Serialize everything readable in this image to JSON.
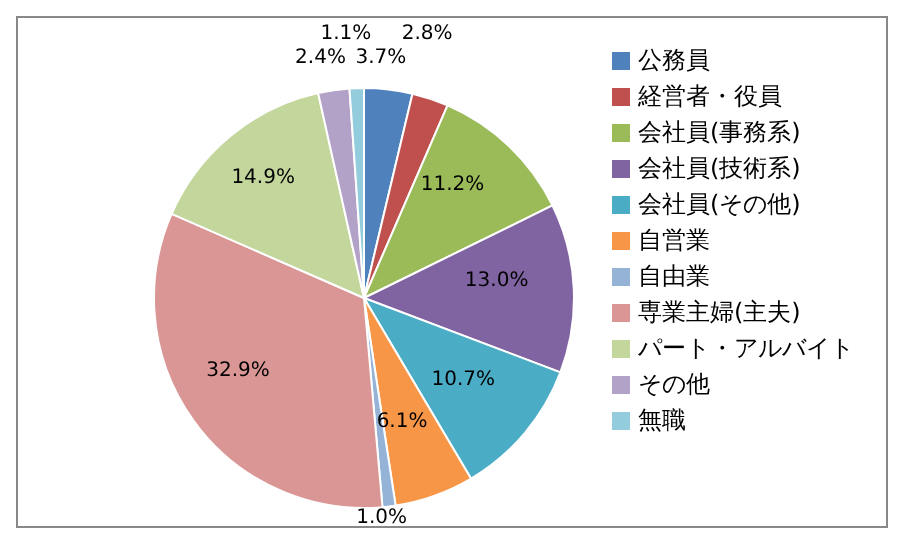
{
  "chart_data": {
    "type": "pie",
    "categories": [
      "公務員",
      "経営者・役員",
      "会社員(事務系)",
      "会社員(技術系)",
      "会社員(その他)",
      "自営業",
      "自由業",
      "専業主婦(主夫)",
      "パート・アルバイト",
      "その他",
      "無職"
    ],
    "values": [
      3.7,
      2.8,
      11.2,
      13.0,
      10.7,
      6.1,
      1.0,
      32.9,
      14.9,
      2.4,
      1.1
    ],
    "value_labels": [
      "3.7%",
      "2.8%",
      "11.2%",
      "13.0%",
      "10.7%",
      "6.1%",
      "1.0%",
      "32.9%",
      "14.9%",
      "2.4%",
      "1.1%"
    ],
    "colors": [
      "#4f81bd",
      "#c0504d",
      "#9bbb59",
      "#8064a2",
      "#4bacc6",
      "#f79646",
      "#95b3d7",
      "#d99694",
      "#c3d69b",
      "#b3a2c7",
      "#93cddd"
    ],
    "legend": "right"
  }
}
